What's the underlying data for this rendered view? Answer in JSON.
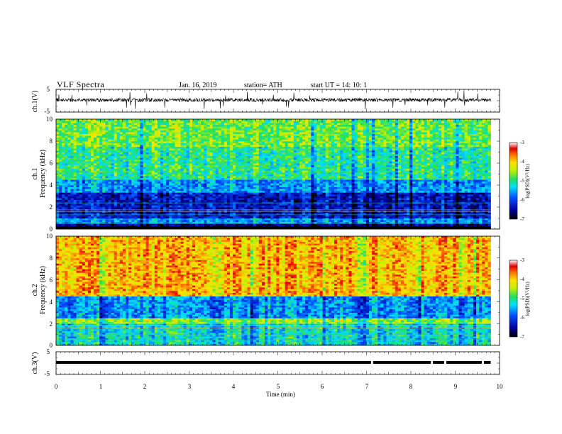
{
  "header": {
    "title": "VLF  Spectra",
    "date": "Jan. 16, 2019",
    "station": "station= ATH",
    "start": "start  UT  =   14: 10: 1"
  },
  "chart_data": [
    {
      "type": "line",
      "panel": "ch1-waveform",
      "ylabel": "ch.1(V)",
      "ylim": [
        -5,
        5
      ],
      "yticks": [
        "5",
        "-5"
      ],
      "x": [
        0,
        10
      ],
      "series": [
        {
          "values_level_approx": 0
        }
      ]
    },
    {
      "type": "heatmap",
      "panel": "ch1-spectrogram",
      "ylabel_line1": "ch.1",
      "ylabel_line2": "Frequency (kHz)",
      "ylim": [
        0,
        10
      ],
      "yticks": [
        "10",
        "8",
        "6",
        "4",
        "2",
        "0"
      ],
      "xlim": [
        0,
        9.8
      ],
      "band_levels": [
        {
          "fmin": 0.0,
          "fmax": 0.5,
          "level": -6.6
        },
        {
          "fmin": 0.5,
          "fmax": 1.0,
          "level": -5.6
        },
        {
          "fmin": 1.0,
          "fmax": 3.4,
          "level": -6.3
        },
        {
          "fmin": 3.4,
          "fmax": 4.5,
          "level": -5.6
        },
        {
          "fmin": 4.5,
          "fmax": 7.5,
          "level": -5.0
        },
        {
          "fmin": 7.5,
          "fmax": 10.0,
          "level": -4.7
        }
      ],
      "colorbar": {
        "label": "log(PSD)(V²/Hz)",
        "ticks": [
          "-3",
          "-4",
          "-5",
          "-6",
          "-7"
        ],
        "range": [
          -7,
          -3
        ]
      }
    },
    {
      "type": "heatmap",
      "panel": "ch2-spectrogram",
      "ylabel_line1": "ch.2",
      "ylabel_line2": "Frequency (kHz)",
      "ylim": [
        0,
        10
      ],
      "yticks": [
        "10",
        "8",
        "6",
        "4",
        "2",
        "0"
      ],
      "xlim": [
        0,
        9.8
      ],
      "band_levels": [
        {
          "fmin": 0.0,
          "fmax": 2.0,
          "level": -5.2
        },
        {
          "fmin": 2.0,
          "fmax": 2.5,
          "level": -4.6
        },
        {
          "fmin": 2.5,
          "fmax": 4.5,
          "level": -5.6
        },
        {
          "fmin": 4.5,
          "fmax": 10.0,
          "level": -3.9
        }
      ],
      "colorbar": {
        "label": "log(PSD)(V²/Hz)",
        "ticks": [
          "-3",
          "-4",
          "-5",
          "-6",
          "-7"
        ],
        "range": [
          -7,
          -3
        ]
      }
    },
    {
      "type": "line",
      "panel": "ch3-waveform",
      "ylabel": "ch.3(V)",
      "ylim": [
        -5,
        5
      ],
      "yticks": [
        "5",
        "-5"
      ],
      "x": [
        0,
        9.8
      ],
      "series": [
        {
          "values_level_approx": 0
        }
      ],
      "gaps_min": [
        7.1,
        8.45,
        8.75,
        9.6
      ]
    }
  ],
  "xaxis": {
    "label": "Time  (min)",
    "ticks": [
      "0",
      "1",
      "2",
      "3",
      "4",
      "5",
      "6",
      "7",
      "8",
      "9",
      "10"
    ],
    "range": [
      0,
      10
    ]
  },
  "colors": {
    "frame": "#000000",
    "background": "#ffffff"
  }
}
